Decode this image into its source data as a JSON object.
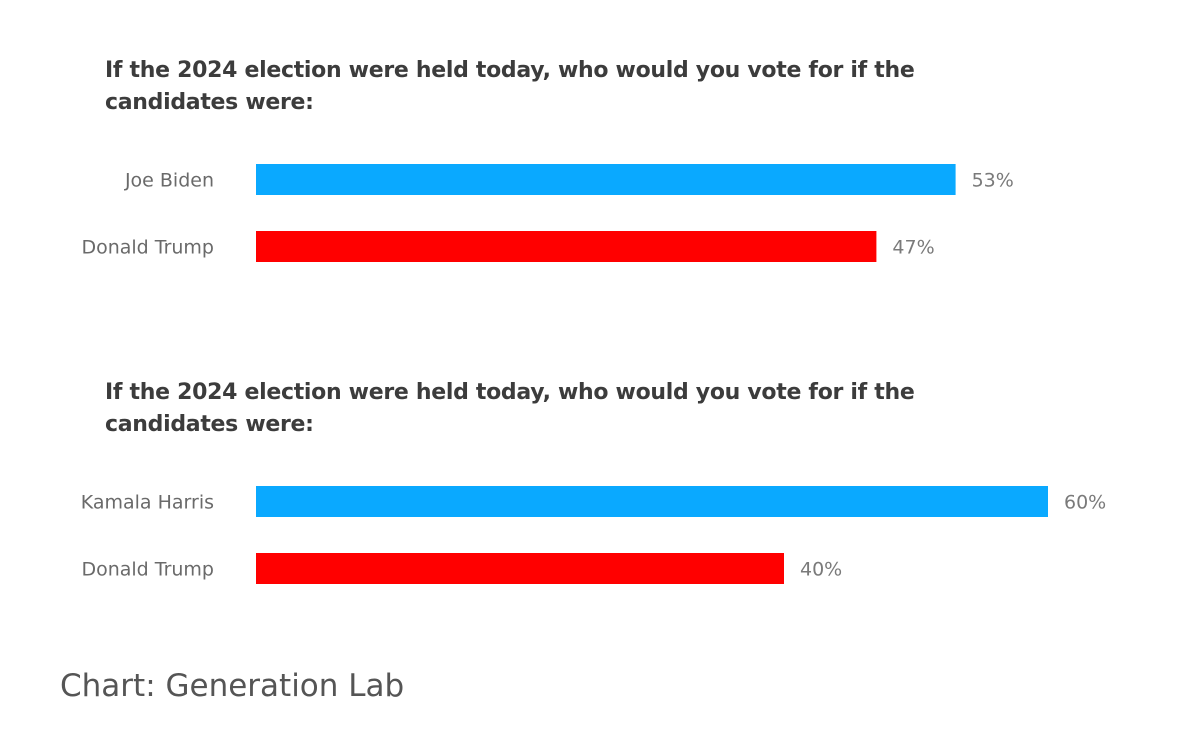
{
  "source": "Chart: Generation Lab",
  "chart_data": [
    {
      "type": "bar",
      "orientation": "horizontal",
      "title": "If the 2024 election were held today, who would you vote for if the candidates were:",
      "categories": [
        "Joe Biden",
        "Donald Trump"
      ],
      "values": [
        53,
        47
      ],
      "value_labels": [
        "53%",
        "47%"
      ],
      "colors": [
        "#0aa9ff",
        "#ff0000"
      ],
      "xlim": [
        0,
        60
      ],
      "grid": false
    },
    {
      "type": "bar",
      "orientation": "horizontal",
      "title": "If the 2024 election were held today, who would you vote for if the candidates were:",
      "categories": [
        "Kamala Harris",
        "Donald Trump"
      ],
      "values": [
        60,
        40
      ],
      "value_labels": [
        "60%",
        "40%"
      ],
      "colors": [
        "#0aa9ff",
        "#ff0000"
      ],
      "xlim": [
        0,
        60
      ],
      "grid": false
    }
  ]
}
